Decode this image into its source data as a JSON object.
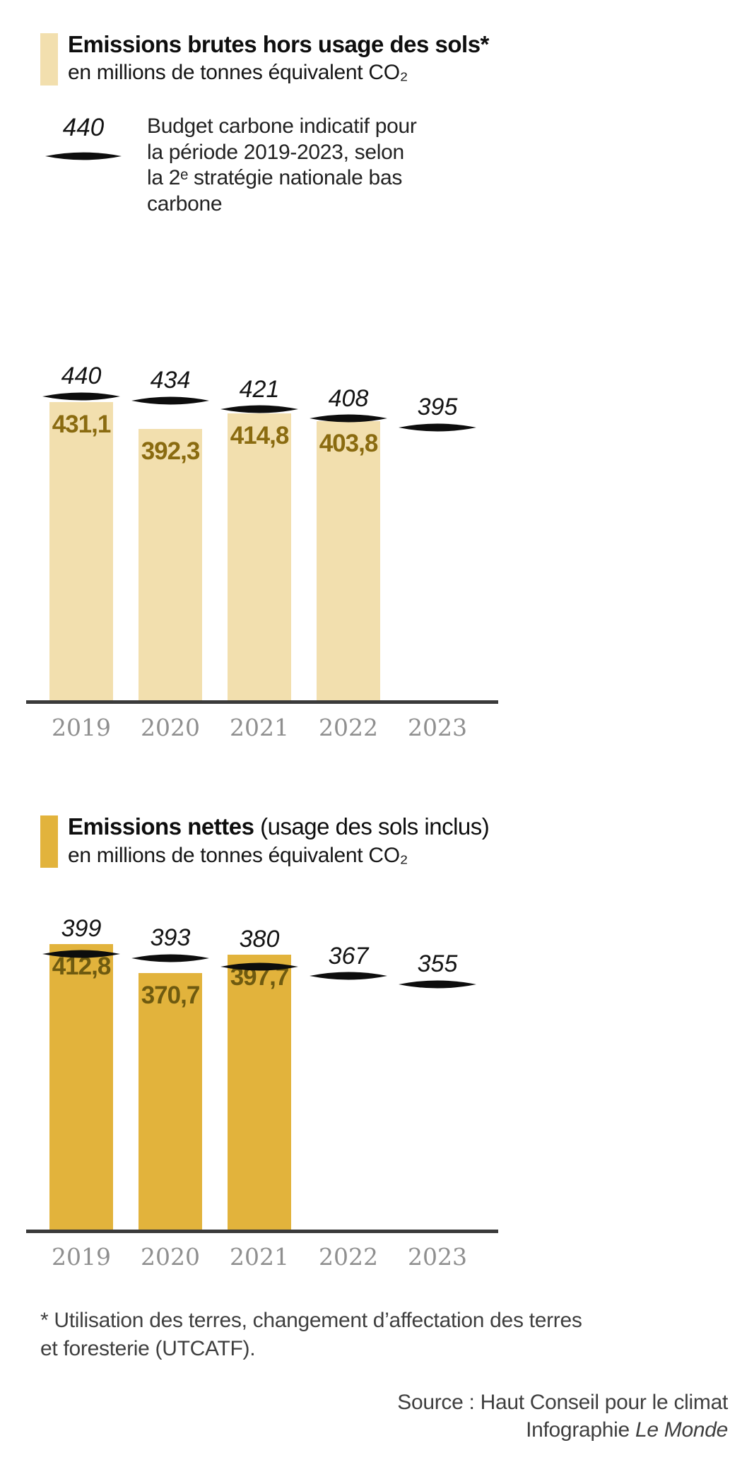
{
  "budget_legend": {
    "sample_value": "440",
    "lines": [
      "Budget carbone indicatif pour",
      "la période 2019-2023, selon",
      "la 2ᵉ stratégie nationale bas",
      "carbone"
    ]
  },
  "footer": {
    "footnote_lines": [
      "* Utilisation des terres, changement d’affectation des terres",
      "et foresterie (UTCATF)."
    ],
    "source": "Source : Haut Conseil pour le climat",
    "credit_prefix": "Infographie ",
    "credit_name": "Le Monde"
  },
  "axis": {
    "line_color": "#3a3a3a",
    "year_label_color": "#8f8f8f"
  },
  "chart_data": [
    {
      "type": "bar",
      "title": "Emissions brutes hors usage des sols*",
      "title_suffix": "",
      "subtitle": "en millions de tonnes équivalent CO₂",
      "categories": [
        "2019",
        "2020",
        "2021",
        "2022",
        "2023"
      ],
      "series": [
        {
          "name": "Emissions brutes",
          "values": [
            431.1,
            392.3,
            414.8,
            403.8,
            null
          ],
          "labels": [
            "431,1",
            "392,3",
            "414,8",
            "403,8",
            ""
          ]
        },
        {
          "name": "Budget carbone indicatif",
          "values": [
            440,
            434,
            421,
            408,
            395
          ],
          "labels": [
            "440",
            "434",
            "421",
            "408",
            "395"
          ]
        }
      ],
      "ylim": [
        0,
        470
      ],
      "grid": false,
      "bar_color": "#f2dfae",
      "value_label_color": "#8a6b10",
      "budget_marker_color": "#0d0d0d"
    },
    {
      "type": "bar",
      "title": "Emissions nettes",
      "title_suffix": " (usage des sols inclus)",
      "subtitle": "en millions de tonnes équivalent CO₂",
      "categories": [
        "2019",
        "2020",
        "2021",
        "2022",
        "2023"
      ],
      "series": [
        {
          "name": "Emissions nettes",
          "values": [
            412.8,
            370.7,
            397.7,
            null,
            null
          ],
          "labels": [
            "412,8",
            "370,7",
            "397,7",
            "",
            ""
          ]
        },
        {
          "name": "Budget carbone indicatif",
          "values": [
            399,
            393,
            380,
            367,
            355
          ],
          "labels": [
            "399",
            "393",
            "380",
            "367",
            "355"
          ]
        }
      ],
      "ylim": [
        0,
        470
      ],
      "grid": false,
      "bar_color": "#e2b33c",
      "value_label_color": "#6e5a10",
      "budget_marker_color": "#0d0d0d"
    }
  ]
}
